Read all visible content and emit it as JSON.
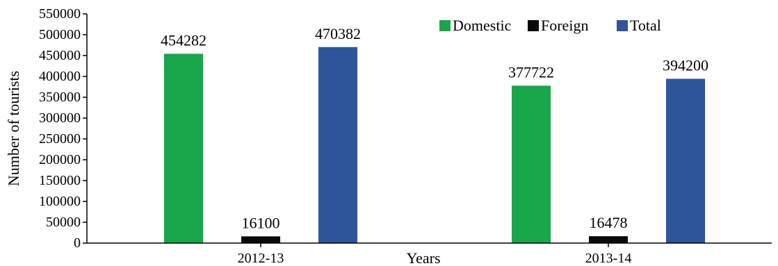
{
  "chart_data": {
    "type": "bar",
    "title": "",
    "xlabel": "Years",
    "ylabel": "Number of tourists",
    "categories": [
      "2012-13",
      "2013-14"
    ],
    "series": [
      {
        "name": "Domestic",
        "color": "#1aa64a",
        "values": [
          454282,
          377722
        ]
      },
      {
        "name": "Foreign",
        "color": "#0a0a0a",
        "values": [
          16100,
          16478
        ]
      },
      {
        "name": "Total",
        "color": "#2e5597",
        "values": [
          470382,
          394200
        ]
      }
    ],
    "ylim": [
      0,
      550000
    ],
    "yticks": [
      "0",
      "50000",
      "100000",
      "150000",
      "200000",
      "250000",
      "300000",
      "350000",
      "400000",
      "450000",
      "500000",
      "550000"
    ],
    "grid": false,
    "legend": "top-right"
  }
}
